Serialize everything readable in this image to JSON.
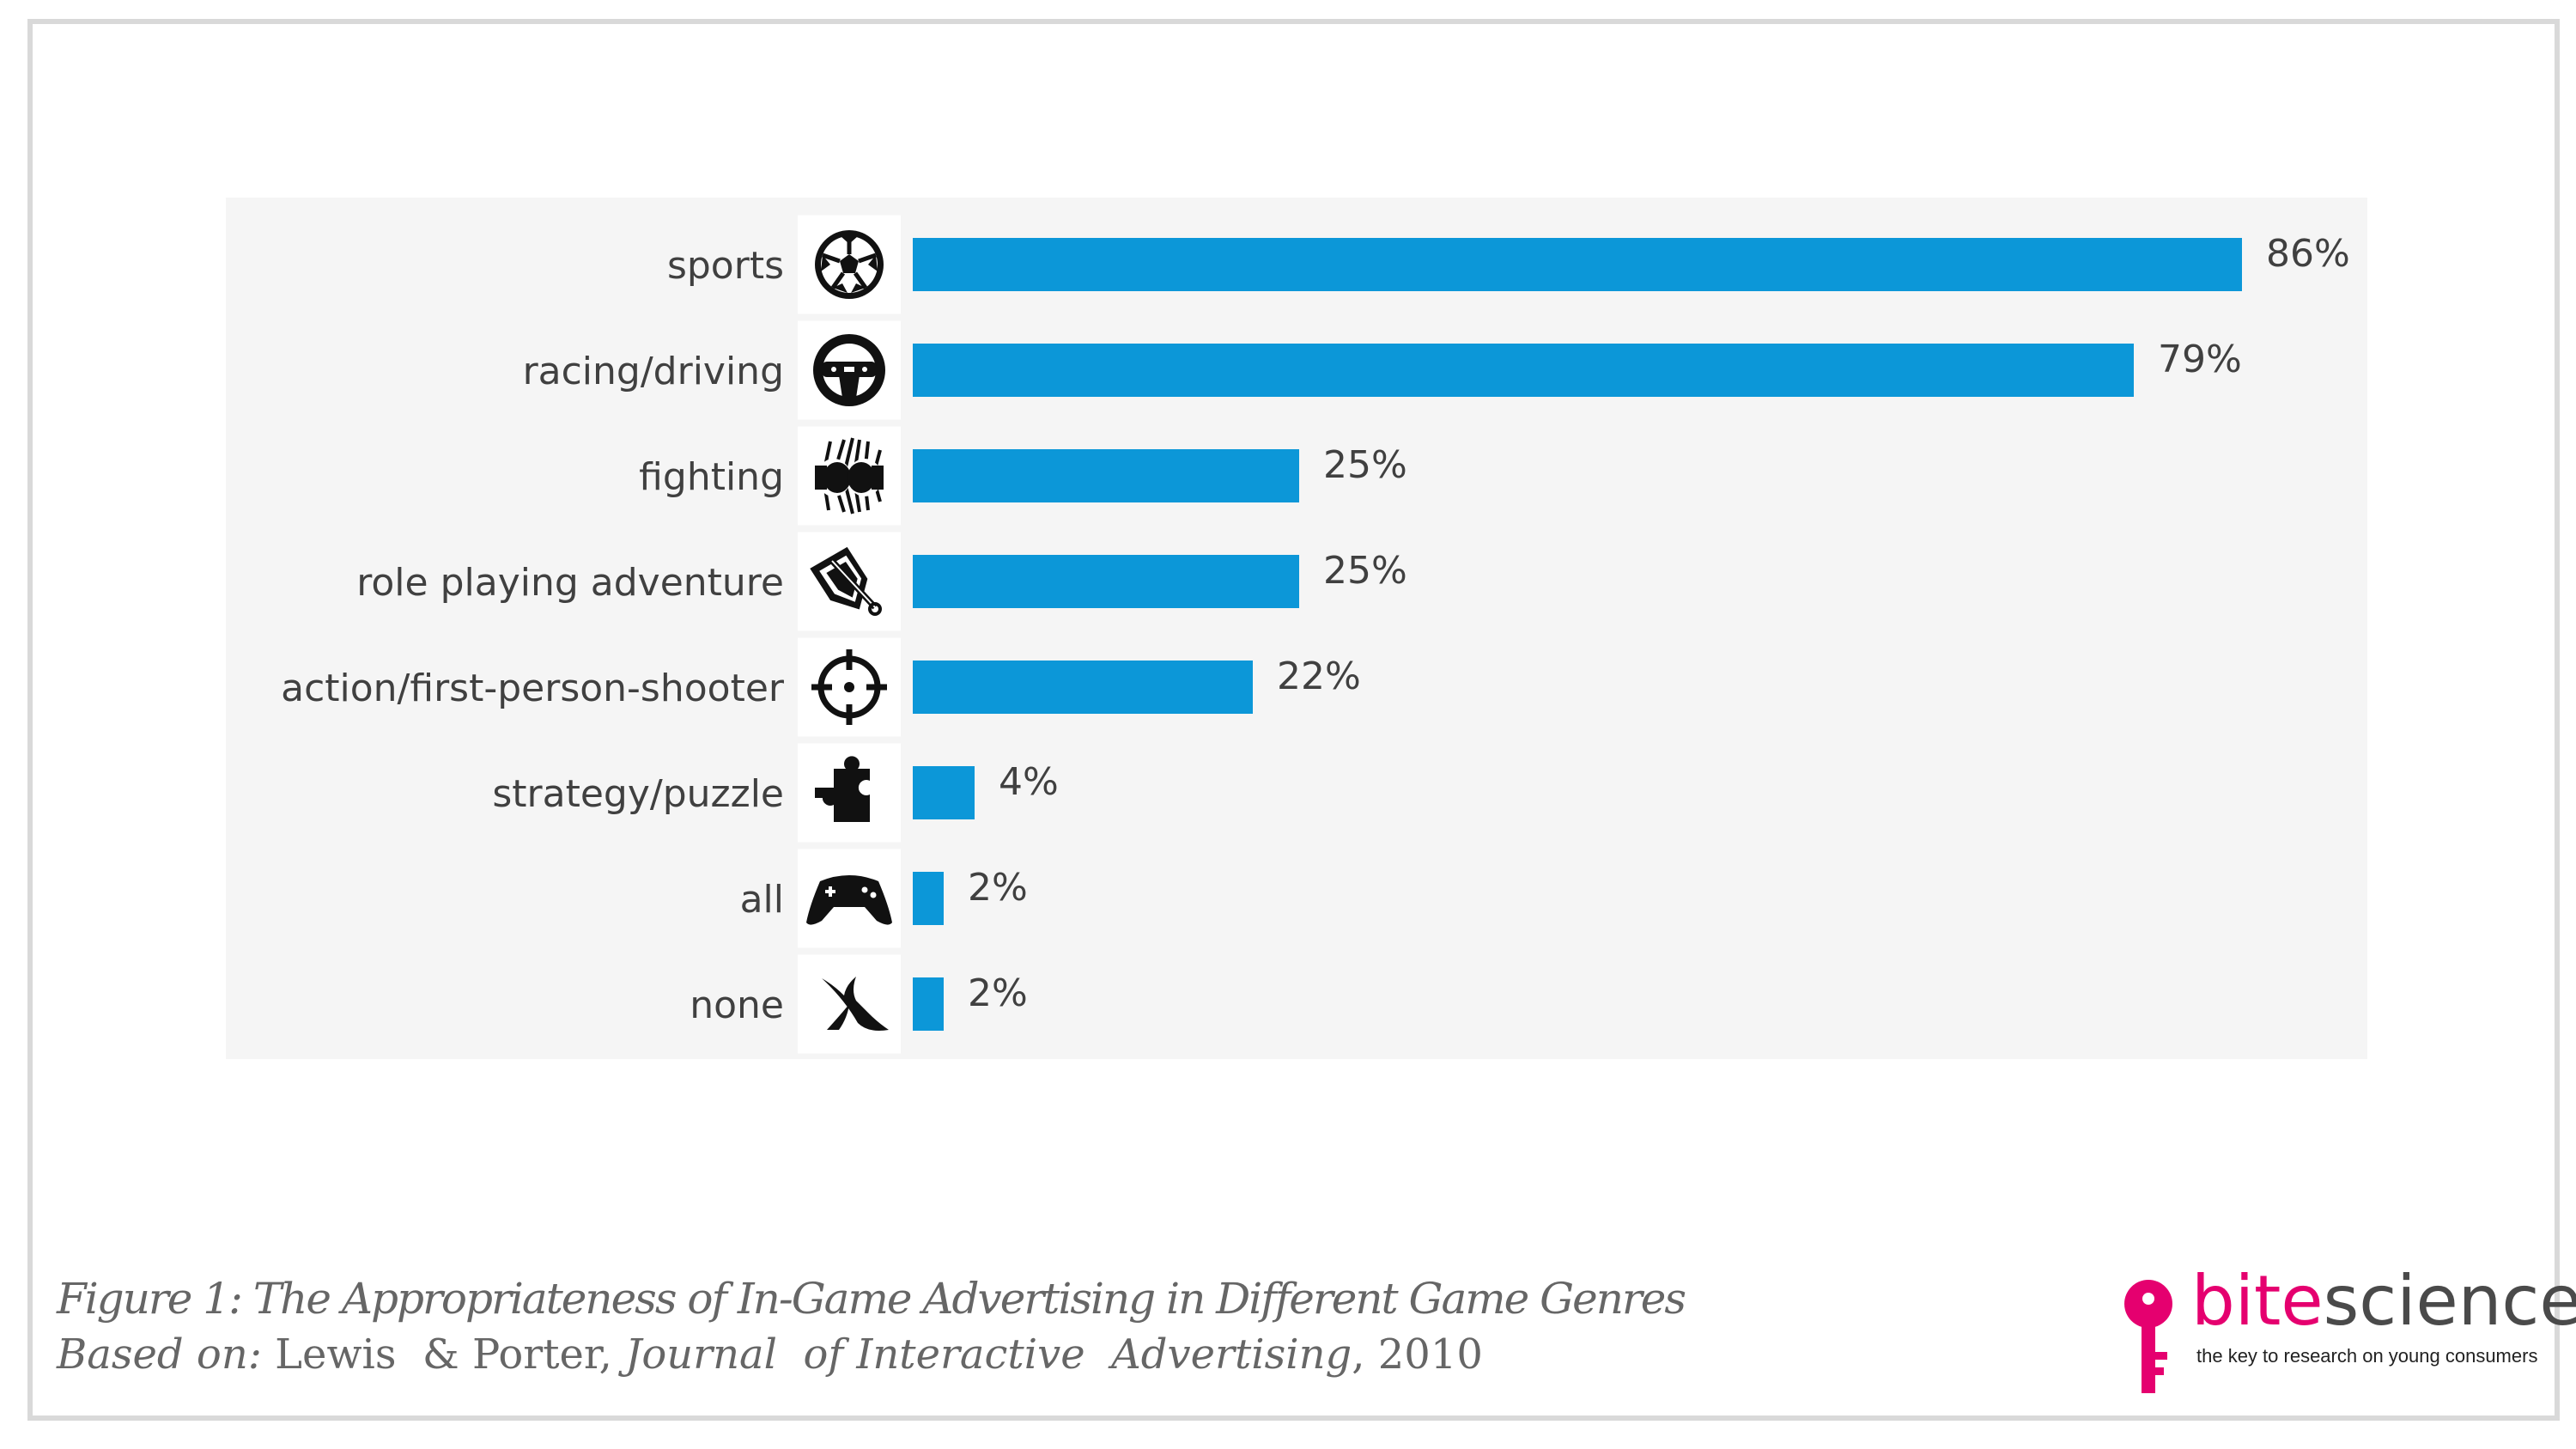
{
  "chart_data": {
    "type": "bar",
    "orientation": "horizontal",
    "categories": [
      "sports",
      "racing/driving",
      "fighting",
      "role playing adventure",
      "action/first-person-shooter",
      "strategy/puzzle",
      "all",
      "none"
    ],
    "values": [
      86,
      79,
      25,
      25,
      22,
      4,
      2,
      2
    ],
    "value_labels": [
      "86%",
      "79%",
      "25%",
      "25%",
      "22%",
      "4%",
      "2%",
      "2%"
    ],
    "icons": [
      "soccer-ball-icon",
      "steering-wheel-icon",
      "boxing-gloves-icon",
      "shield-sword-icon",
      "crosshair-icon",
      "puzzle-piece-icon",
      "gamepad-icon",
      "x-mark-icon"
    ],
    "bar_color": "#0c97d8",
    "background_color": "#f5f5f5",
    "xlim": [
      0,
      100
    ],
    "grid": false,
    "legend": "none"
  },
  "caption": {
    "title": "Figure 1: The Appropriateness of In-Game Advertising in Different Game Genres",
    "source_prefix": "Based on:",
    "source_authors": " Lewis  & Porter, ",
    "source_journal": "Journal  of Interactive  Advertising",
    "source_year": ", 2010"
  },
  "logo": {
    "bite": "bite",
    "science": "science",
    "tagline": "the key to research on young consumers",
    "brand_color": "#e5006f"
  }
}
